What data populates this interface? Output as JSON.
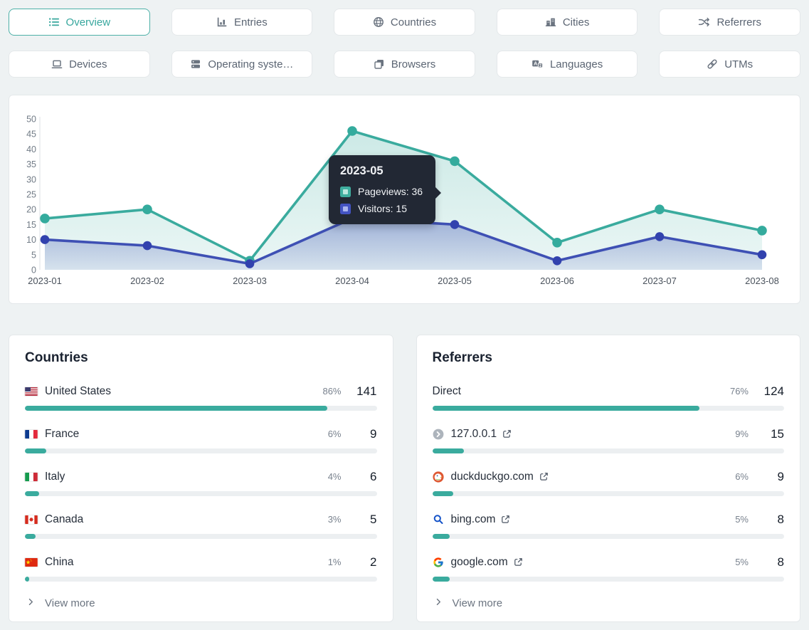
{
  "nav": {
    "tabs": [
      {
        "id": "overview",
        "label": "Overview",
        "icon": "list-icon",
        "active": true
      },
      {
        "id": "entries",
        "label": "Entries",
        "icon": "bar-chart-icon",
        "active": false
      },
      {
        "id": "countries",
        "label": "Countries",
        "icon": "globe-icon",
        "active": false
      },
      {
        "id": "cities",
        "label": "Cities",
        "icon": "buildings-icon",
        "active": false
      },
      {
        "id": "referrers",
        "label": "Referrers",
        "icon": "shuffle-icon",
        "active": false
      },
      {
        "id": "devices",
        "label": "Devices",
        "icon": "laptop-icon",
        "active": false
      },
      {
        "id": "operating-systems",
        "label": "Operating syste…",
        "icon": "server-icon",
        "active": false
      },
      {
        "id": "browsers",
        "label": "Browsers",
        "icon": "windows-icon",
        "active": false
      },
      {
        "id": "languages",
        "label": "Languages",
        "icon": "translate-icon",
        "active": false
      },
      {
        "id": "utms",
        "label": "UTMs",
        "icon": "link-icon",
        "active": false
      }
    ]
  },
  "chart_data": {
    "type": "line",
    "x": [
      "2023-01",
      "2023-02",
      "2023-03",
      "2023-04",
      "2023-05",
      "2023-06",
      "2023-07",
      "2023-08"
    ],
    "series": [
      {
        "name": "Pageviews",
        "values": [
          17,
          20,
          3,
          46,
          36,
          9,
          20,
          13
        ],
        "color": "#3aab9e",
        "point_color": "#34ab9d",
        "fill_top": "rgba(58,171,158,0.26)",
        "fill_bottom": "rgba(58,171,158,0.10)"
      },
      {
        "name": "Visitors",
        "values": [
          10,
          8,
          2,
          17,
          15,
          3,
          11,
          5
        ],
        "color": "#3e50b4",
        "point_color": "#3242ae",
        "fill_top": "rgba(62,80,180,0.40)",
        "fill_bottom": "rgba(62,80,180,0.12)"
      }
    ],
    "ylim": [
      0,
      50
    ],
    "ytick_step": 5,
    "grid": "none",
    "legend": "tooltip-only",
    "tooltip": {
      "title": "2023-05",
      "rows": [
        {
          "series": "Pageviews",
          "value": 36,
          "swatch_color": "#3fae9f",
          "swatch_inner": "#bce7df"
        },
        {
          "series": "Visitors",
          "value": 15,
          "swatch_color": "#4353c2",
          "swatch_inner": "#aab4ef"
        }
      ]
    }
  },
  "countries_card": {
    "title": "Countries",
    "view_more_label": "View more",
    "rows": [
      {
        "name": "United States",
        "flag": "us",
        "pct": 86,
        "value": 141
      },
      {
        "name": "France",
        "flag": "fr",
        "pct": 6,
        "value": 9
      },
      {
        "name": "Italy",
        "flag": "it",
        "pct": 4,
        "value": 6
      },
      {
        "name": "Canada",
        "flag": "ca",
        "pct": 3,
        "value": 5
      },
      {
        "name": "China",
        "flag": "cn",
        "pct": 1,
        "value": 2
      }
    ]
  },
  "referrers_card": {
    "title": "Referrers",
    "view_more_label": "View more",
    "rows": [
      {
        "name": "Direct",
        "favicon": "none",
        "external_link": false,
        "pct": 76,
        "value": 124
      },
      {
        "name": "127.0.0.1",
        "favicon": "default-favicon",
        "external_link": true,
        "pct": 9,
        "value": 15
      },
      {
        "name": "duckduckgo.com",
        "favicon": "duckduckgo-favicon",
        "external_link": true,
        "pct": 6,
        "value": 9
      },
      {
        "name": "bing.com",
        "favicon": "bing-favicon",
        "external_link": true,
        "pct": 5,
        "value": 8
      },
      {
        "name": "google.com",
        "favicon": "google-favicon",
        "external_link": true,
        "pct": 5,
        "value": 8
      }
    ]
  },
  "colors": {
    "accent_teal": "#3aab9e",
    "accent_indigo": "#3e50b4",
    "bar_track": "#eceff1",
    "tab_active": "#38a79e",
    "tooltip_bg": "#222834",
    "page_bg": "#eef2f3"
  }
}
